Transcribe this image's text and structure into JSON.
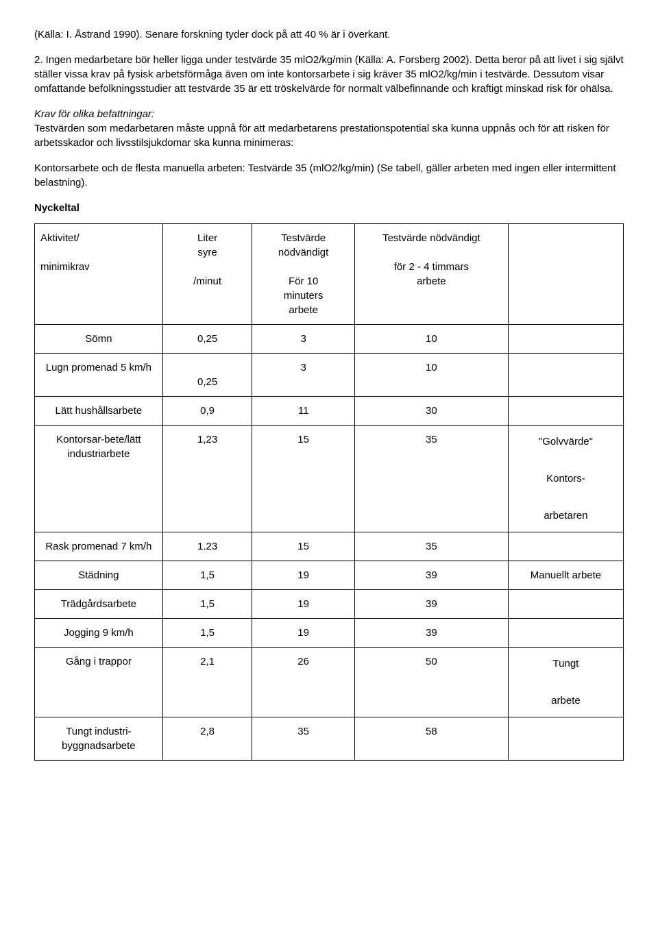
{
  "paragraphs": {
    "p1": "(Källa: I. Åstrand 1990). Senare forskning tyder dock på att 40 % är i överkant.",
    "p2": "2. Ingen medarbetare bör heller ligga under testvärde 35 mlO2/kg/min (Källa: A. Forsberg 2002). Detta beror på att livet i sig självt ställer vissa krav på fysisk arbetsförmåga även om inte kontorsarbete i sig kräver 35 mlO2/kg/min i testvärde. Dessutom visar omfattande befolkningsstudier att testvärde 35 är ett tröskelvärde för normalt välbefinnande och kraftigt minskad risk för ohälsa.",
    "p3_italic": "Krav för olika befattningar:",
    "p3_rest": "Testvärden som medarbetaren måste uppnå för att medarbetarens prestationspotential ska kunna uppnås och för att risken för arbetsskador och livsstilsjukdomar ska kunna minimeras:",
    "p4": "Kontorsarbete och de flesta manuella arbeten: Testvärde 35 (mlO2/kg/min) (Se tabell, gäller arbeten med ingen eller intermittent belastning).",
    "heading": "Nyckeltal"
  },
  "table": {
    "headers": {
      "h1_line1": "Aktivitet/",
      "h1_line2": "minimikrav",
      "h2_line1": "Liter",
      "h2_line2": "syre",
      "h2_line3": "/minut",
      "h3_line1": "Testvärde",
      "h3_line2": "nödvändigt",
      "h3_line3": "För 10",
      "h3_line4": "minuters",
      "h3_line5": "arbete",
      "h4_line1": "Testvärde nödvändigt",
      "h4_line2": "för 2 - 4 timmars",
      "h4_line3": "arbete",
      "h5": ""
    },
    "rows": [
      {
        "activity": "Sömn",
        "liter": "0,25",
        "test10": "3",
        "test24": "10",
        "note": ""
      },
      {
        "activity": "Lugn promenad 5 km/h",
        "liter": "0,25",
        "test10": "3",
        "test24": "10",
        "note": ""
      },
      {
        "activity": "Lätt hushållsarbete",
        "liter": "0,9",
        "test10": "11",
        "test24": "30",
        "note": ""
      },
      {
        "activity": "Kontorsar-bete/lätt industriarbete",
        "liter": "1,23",
        "test10": "15",
        "test24": "35",
        "note_line1": "\"Golvvärde\"",
        "note_line2": "Kontors-",
        "note_line3": "arbetaren"
      },
      {
        "activity": "Rask promenad 7 km/h",
        "liter": "1.23",
        "test10": "15",
        "test24": "35",
        "note": ""
      },
      {
        "activity": "Städning",
        "liter": "1,5",
        "test10": "19",
        "test24": "39",
        "note": "Manuellt arbete"
      },
      {
        "activity": "Trädgårdsarbete",
        "liter": "1,5",
        "test10": "19",
        "test24": "39",
        "note": ""
      },
      {
        "activity": "Jogging 9 km/h",
        "liter": "1,5",
        "test10": "19",
        "test24": "39",
        "note": ""
      },
      {
        "activity": "Gång i trappor",
        "liter": "2,1",
        "test10": "26",
        "test24": "50",
        "note_line1": "Tungt",
        "note_line2": "arbete"
      },
      {
        "activity": "Tungt industri-byggnadsarbete",
        "liter": "2,8",
        "test10": "35",
        "test24": "58",
        "note": ""
      }
    ]
  }
}
